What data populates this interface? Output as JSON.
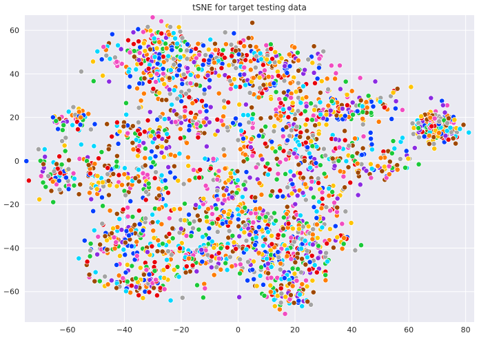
{
  "chart_data": {
    "type": "scatter",
    "title": "tSNE for target testing data",
    "xlabel": "",
    "ylabel": "",
    "xlim": [
      -75,
      83
    ],
    "ylim": [
      -74,
      67
    ],
    "xticks": [
      -60,
      -40,
      -20,
      0,
      20,
      40,
      60,
      80
    ],
    "yticks": [
      -60,
      -40,
      -20,
      0,
      20,
      40,
      60
    ],
    "xtick_labels": [
      "−60",
      "−40",
      "−20",
      "0",
      "20",
      "40",
      "60",
      "80"
    ],
    "ytick_labels": [
      "−60",
      "−40",
      "−20",
      "0",
      "20",
      "40",
      "60"
    ],
    "grid": true,
    "legend": "none",
    "background": "#eaeaf2",
    "palette": [
      "#023eff",
      "#ff7c00",
      "#1ac938",
      "#e8000b",
      "#8b2be2",
      "#9f4800",
      "#f14cc1",
      "#a3a3a3",
      "#ffc400",
      "#00d7ff"
    ],
    "clusters": [
      {
        "x": 70,
        "y": 16,
        "sx": 4,
        "sy": 4,
        "n": 170
      },
      {
        "x": -57,
        "y": 20,
        "sx": 3,
        "sy": 2.5,
        "n": 30
      },
      {
        "x": -63,
        "y": 18,
        "sx": 1.5,
        "sy": 1.5,
        "n": 10
      },
      {
        "x": -62,
        "y": -5,
        "sx": 4,
        "sy": 6,
        "n": 70
      },
      {
        "x": -48,
        "y": -7,
        "sx": 4,
        "sy": 5,
        "n": 50
      },
      {
        "x": -30,
        "y": 48,
        "sx": 10,
        "sy": 6,
        "n": 130
      },
      {
        "x": -24,
        "y": 57,
        "sx": 4,
        "sy": 3,
        "n": 30
      },
      {
        "x": -25,
        "y": 33,
        "sx": 8,
        "sy": 8,
        "n": 90
      },
      {
        "x": -10,
        "y": 45,
        "sx": 10,
        "sy": 6,
        "n": 80
      },
      {
        "x": 3,
        "y": 48,
        "sx": 7,
        "sy": 5,
        "n": 70
      },
      {
        "x": 18,
        "y": 45,
        "sx": 8,
        "sy": 5,
        "n": 70
      },
      {
        "x": 5,
        "y": 35,
        "sx": 6,
        "sy": 4,
        "n": 40
      },
      {
        "x": -30,
        "y": 12,
        "sx": 8,
        "sy": 6,
        "n": 80
      },
      {
        "x": -32,
        "y": -10,
        "sx": 5,
        "sy": 8,
        "n": 80
      },
      {
        "x": -15,
        "y": 20,
        "sx": 5,
        "sy": 5,
        "n": 40
      },
      {
        "x": 5,
        "y": 10,
        "sx": 8,
        "sy": 8,
        "n": 70
      },
      {
        "x": -5,
        "y": -8,
        "sx": 6,
        "sy": 6,
        "n": 60
      },
      {
        "x": -10,
        "y": -25,
        "sx": 10,
        "sy": 6,
        "n": 80
      },
      {
        "x": 22,
        "y": 20,
        "sx": 10,
        "sy": 8,
        "n": 100
      },
      {
        "x": 35,
        "y": 25,
        "sx": 8,
        "sy": 6,
        "n": 70
      },
      {
        "x": 45,
        "y": 25,
        "sx": 8,
        "sy": 5,
        "n": 50
      },
      {
        "x": 30,
        "y": 5,
        "sx": 10,
        "sy": 6,
        "n": 70
      },
      {
        "x": 50,
        "y": 0,
        "sx": 8,
        "sy": 5,
        "n": 60
      },
      {
        "x": 20,
        "y": -10,
        "sx": 8,
        "sy": 8,
        "n": 70
      },
      {
        "x": 30,
        "y": -20,
        "sx": 6,
        "sy": 8,
        "n": 60
      },
      {
        "x": 5,
        "y": -25,
        "sx": 8,
        "sy": 6,
        "n": 60
      },
      {
        "x": 15,
        "y": -30,
        "sx": 8,
        "sy": 6,
        "n": 60
      },
      {
        "x": 25,
        "y": -38,
        "sx": 8,
        "sy": 6,
        "n": 70
      },
      {
        "x": -40,
        "y": -35,
        "sx": 7,
        "sy": 5,
        "n": 80
      },
      {
        "x": -28,
        "y": -45,
        "sx": 10,
        "sy": 7,
        "n": 100
      },
      {
        "x": -10,
        "y": -42,
        "sx": 10,
        "sy": 6,
        "n": 80
      },
      {
        "x": -35,
        "y": -57,
        "sx": 8,
        "sy": 3,
        "n": 60
      },
      {
        "x": 10,
        "y": -42,
        "sx": 8,
        "sy": 6,
        "n": 80
      },
      {
        "x": 18,
        "y": -50,
        "sx": 8,
        "sy": 6,
        "n": 70
      },
      {
        "x": 18,
        "y": -61,
        "sx": 5,
        "sy": 4,
        "n": 60
      }
    ]
  }
}
